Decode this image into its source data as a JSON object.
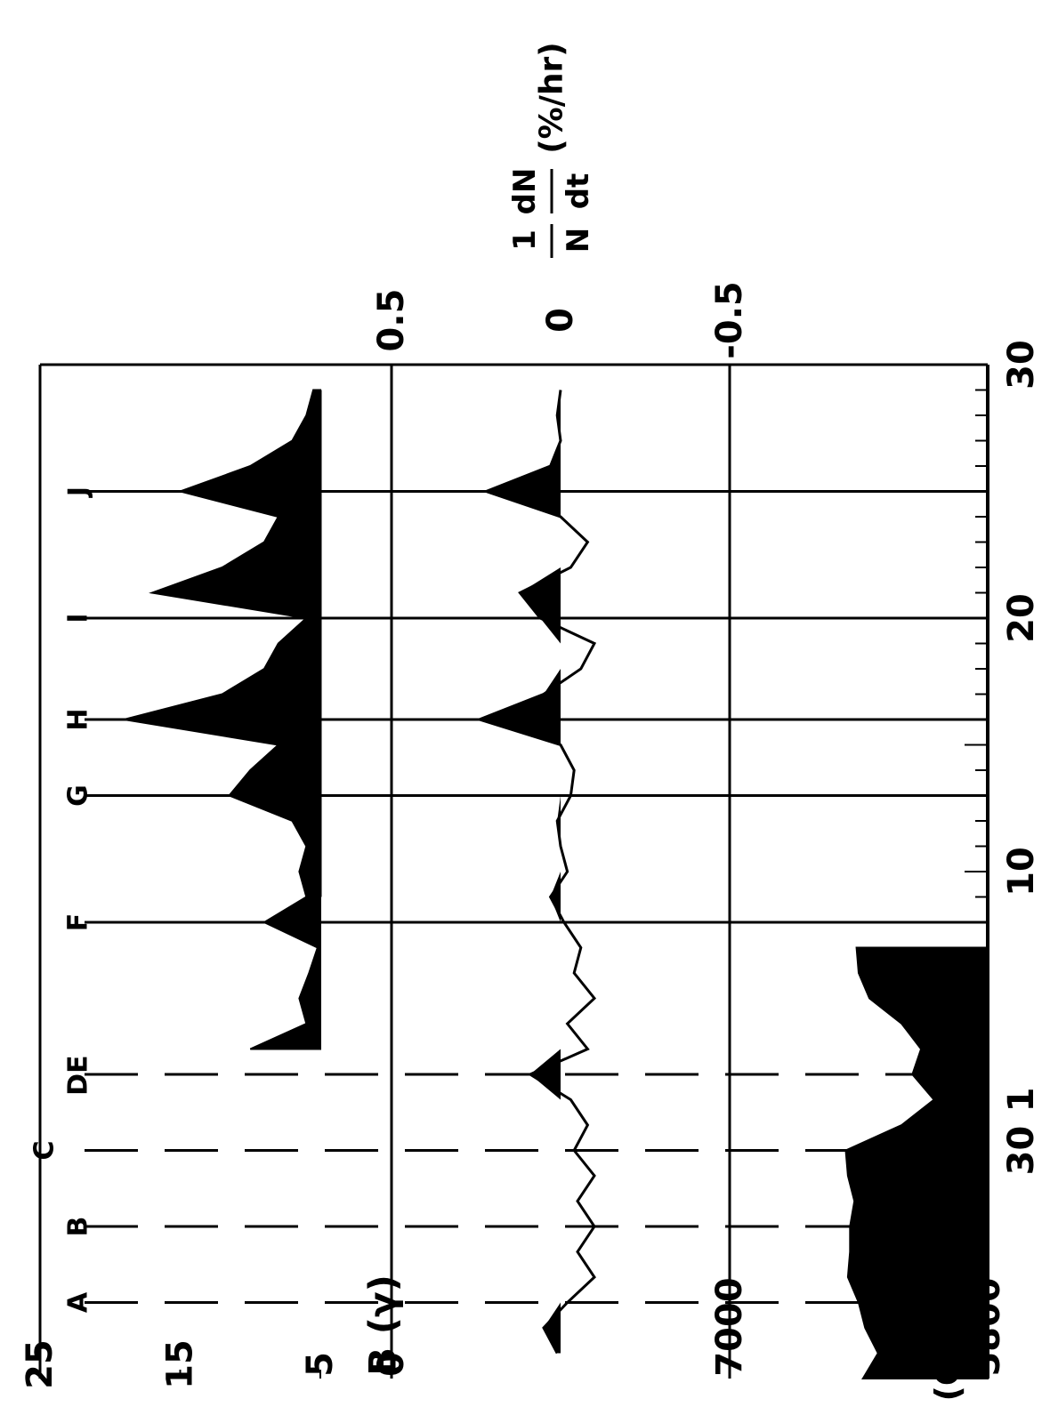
{
  "chart_data": {
    "type": "line",
    "title": "",
    "x": {
      "ticks": [
        "30",
        "20",
        "10",
        "1",
        "30"
      ],
      "ticks_interp": [
        30,
        20,
        10,
        1,
        -1
      ],
      "range": [
        30,
        -10
      ],
      "minor_tick_step": 1
    },
    "event_markers": [
      {
        "label": "A",
        "x": -7
      },
      {
        "label": "B",
        "x": -4
      },
      {
        "label": "C",
        "x": -1
      },
      {
        "label": "D",
        "x": 2
      },
      {
        "label": "E",
        "x": 2
      },
      {
        "label": "F",
        "x": 8
      },
      {
        "label": "G",
        "x": 13
      },
      {
        "label": "H",
        "x": 16
      },
      {
        "label": "I",
        "x": 20
      },
      {
        "label": "J",
        "x": 25
      }
    ],
    "panels": [
      {
        "name": "B",
        "ylabel": "B (γ)",
        "ticks": [
          "25",
          "15",
          "5"
        ],
        "tick_values": [
          25,
          15,
          5
        ],
        "range": [
          5,
          25
        ],
        "fill": "above-baseline",
        "points": [
          [
            3,
            10
          ],
          [
            4,
            6
          ],
          [
            5,
            6.5
          ],
          [
            6,
            5.8
          ],
          [
            7,
            5.2
          ],
          [
            8,
            9
          ],
          [
            9,
            6
          ],
          [
            10,
            6.5
          ],
          [
            11,
            6
          ],
          [
            12,
            7
          ],
          [
            13,
            11.5
          ],
          [
            14,
            10
          ],
          [
            15,
            8
          ],
          [
            16,
            19
          ],
          [
            17,
            12
          ],
          [
            18,
            9
          ],
          [
            19,
            8
          ],
          [
            20,
            6
          ],
          [
            21,
            17
          ],
          [
            22,
            12
          ],
          [
            23,
            9
          ],
          [
            24,
            8
          ],
          [
            25,
            15
          ],
          [
            26,
            10
          ],
          [
            27,
            7
          ],
          [
            28,
            6
          ],
          [
            29,
            5.5
          ]
        ]
      },
      {
        "name": "dNdt",
        "ylabel_parts": [
          "1",
          "N",
          "dN",
          "dt",
          "(%/hr)"
        ],
        "ticks": [
          "0.5",
          "0",
          "-0.5"
        ],
        "tick_values": [
          0.5,
          0,
          -0.5
        ],
        "range": [
          -0.5,
          0.5
        ],
        "fill": "above-zero",
        "points": [
          [
            -9,
            0.01
          ],
          [
            -8,
            0.05
          ],
          [
            -7,
            -0.02
          ],
          [
            -6,
            -0.1
          ],
          [
            -5,
            -0.05
          ],
          [
            -4,
            -0.1
          ],
          [
            -3,
            -0.05
          ],
          [
            -2,
            -0.1
          ],
          [
            -1,
            -0.04
          ],
          [
            0,
            -0.08
          ],
          [
            1,
            -0.03
          ],
          [
            2,
            0.09
          ],
          [
            3,
            -0.08
          ],
          [
            4,
            -0.02
          ],
          [
            5,
            -0.1
          ],
          [
            6,
            -0.04
          ],
          [
            7,
            -0.06
          ],
          [
            8,
            -0.01
          ],
          [
            9,
            0.03
          ],
          [
            10,
            -0.02
          ],
          [
            11,
            0
          ],
          [
            12,
            0.01
          ],
          [
            13,
            -0.03
          ],
          [
            14,
            -0.04
          ],
          [
            15,
            0
          ],
          [
            16,
            0.24
          ],
          [
            17,
            0.05
          ],
          [
            18,
            -0.06
          ],
          [
            19,
            -0.1
          ],
          [
            20,
            0.06
          ],
          [
            21,
            0.12
          ],
          [
            22,
            -0.03
          ],
          [
            23,
            -0.08
          ],
          [
            24,
            0
          ],
          [
            25,
            0.22
          ],
          [
            26,
            0.03
          ],
          [
            27,
            0
          ],
          [
            28,
            0.01
          ],
          [
            29,
            0
          ]
        ]
      },
      {
        "name": "N",
        "ylabel_parts": [
          "N",
          "(COUNTS)"
        ],
        "ticks": [
          "7000",
          "5800"
        ],
        "tick_values": [
          7000,
          5800
        ],
        "range": [
          5800,
          7700
        ],
        "fill": "below-curve",
        "points": [
          [
            -10,
            6380
          ],
          [
            -9,
            6310
          ],
          [
            -8,
            6370
          ],
          [
            -7,
            6400
          ],
          [
            -6,
            6450
          ],
          [
            -5,
            6440
          ],
          [
            -4,
            6440
          ],
          [
            -3,
            6420
          ],
          [
            -2,
            6450
          ],
          [
            -1,
            6460
          ],
          [
            0,
            6200
          ],
          [
            1,
            6050
          ],
          [
            2,
            6150
          ],
          [
            3,
            6110
          ],
          [
            4,
            6200
          ],
          [
            5,
            6350
          ],
          [
            6,
            6400
          ],
          [
            7,
            6410
          ]
        ]
      }
    ],
    "grid": true
  }
}
